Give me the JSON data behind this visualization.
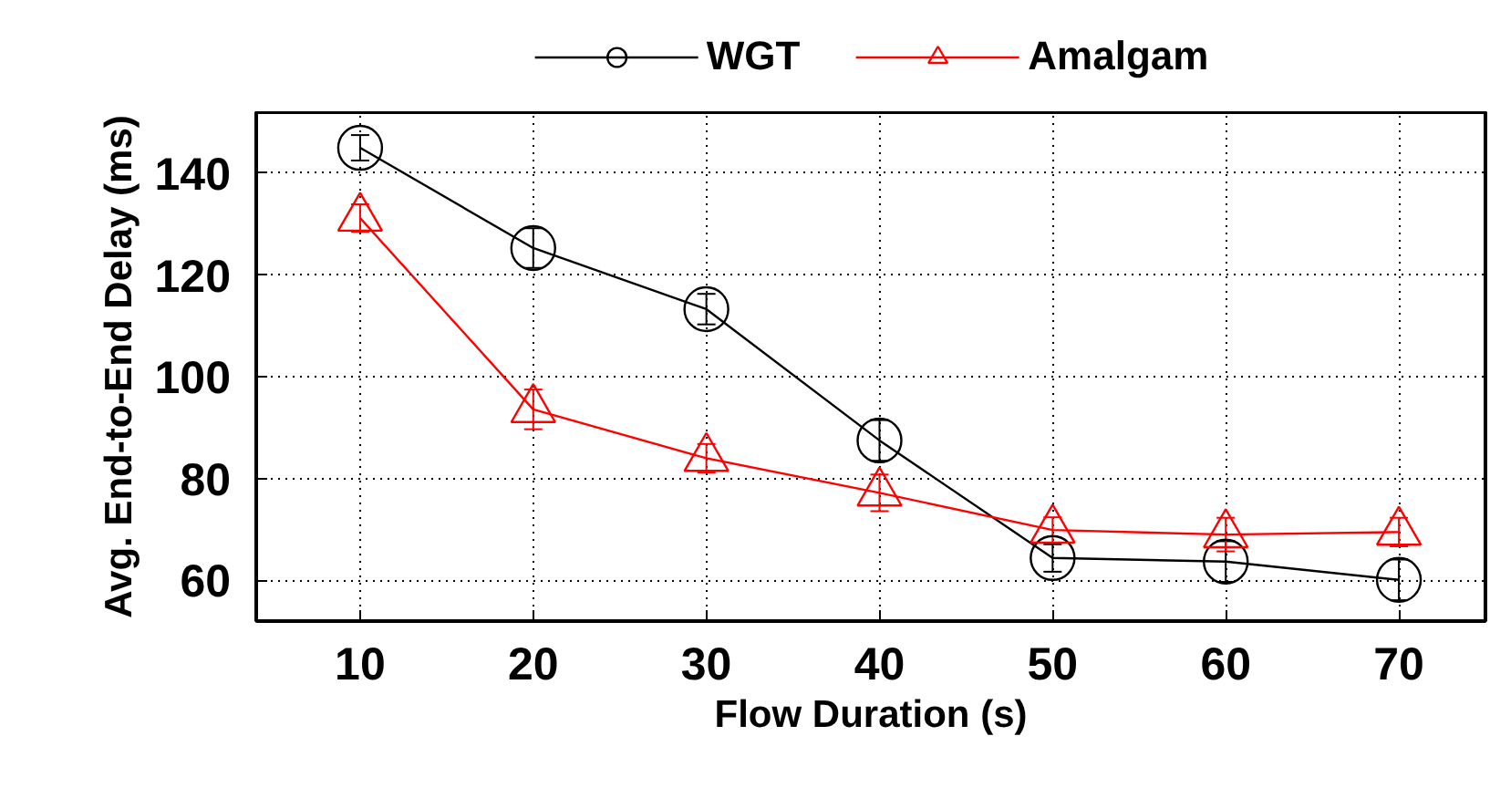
{
  "chart_data": {
    "type": "line",
    "xlabel": "Flow Duration (s)",
    "ylabel": "Avg. End-to-End Delay (ms)",
    "x": [
      10,
      20,
      30,
      40,
      50,
      60,
      70
    ],
    "series": [
      {
        "name": "WGT",
        "color": "#000000",
        "marker": "circle",
        "values": [
          145,
          125.3,
          113.3,
          87.5,
          64.4,
          63.7,
          60.1
        ],
        "errors": [
          2.5,
          3.9,
          3,
          4,
          2.7,
          4,
          4
        ]
      },
      {
        "name": "Amalgam",
        "color": "#ff0000",
        "marker": "triangle",
        "values": [
          131.2,
          93.6,
          84.0,
          77.2,
          69.9,
          69.0,
          69.5
        ],
        "errors": [
          2.7,
          3.9,
          2.8,
          3.6,
          2.5,
          3.3,
          2.8
        ]
      }
    ],
    "xlim": [
      4,
      75
    ],
    "xticks": [
      10,
      20,
      30,
      40,
      50,
      60,
      70
    ],
    "ylim": [
      52,
      152
    ],
    "yticks": [
      60,
      80,
      100,
      120,
      140
    ],
    "grid": true,
    "legend": "top",
    "line_style": "solid"
  }
}
